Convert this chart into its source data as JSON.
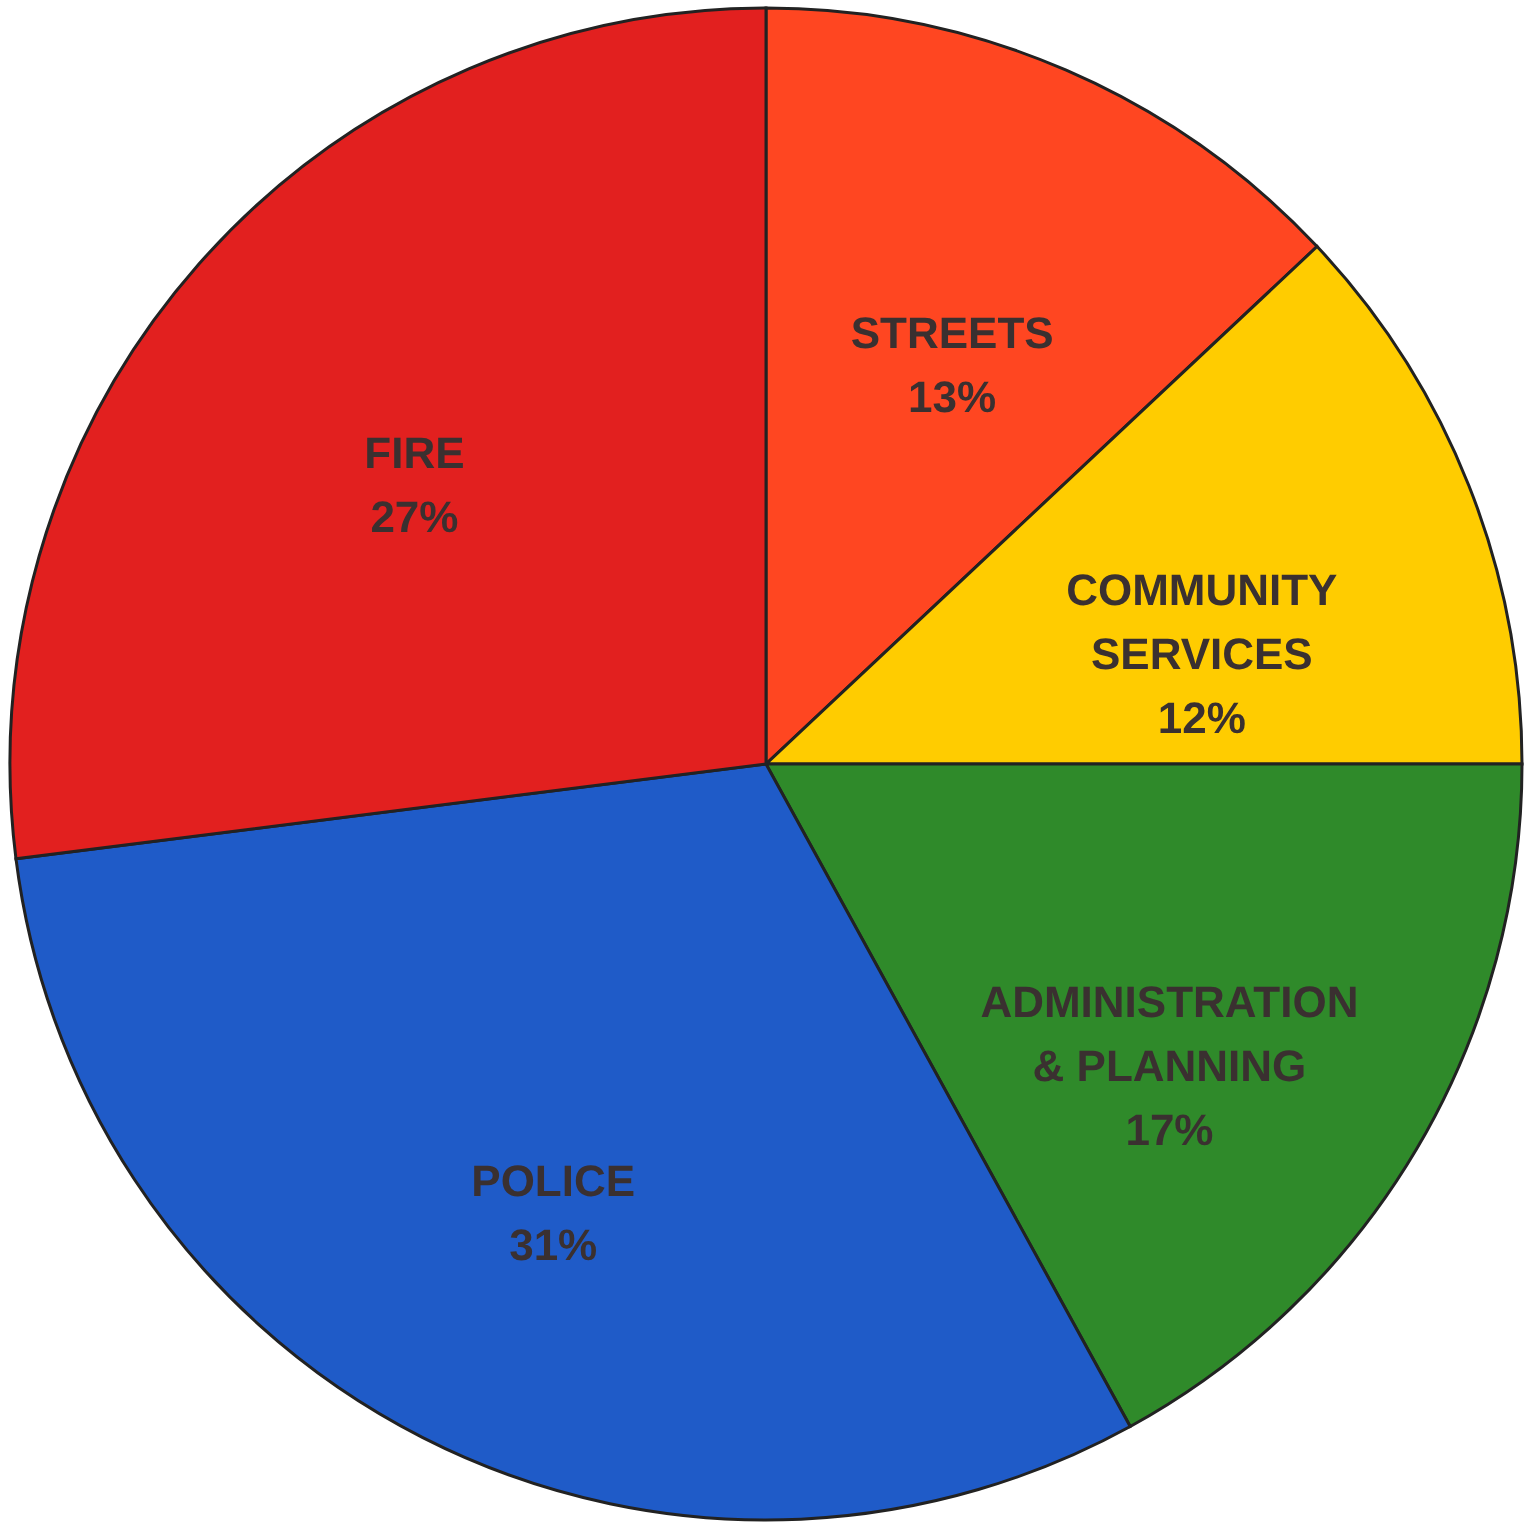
{
  "chart_data": {
    "type": "pie",
    "categories": [
      "STREETS",
      "COMMUNITY SERVICES",
      "ADMINISTRATION & PLANNING",
      "POLICE",
      "FIRE"
    ],
    "values": [
      13,
      12,
      17,
      31,
      27
    ],
    "value_labels": [
      "13%",
      "12%",
      "17%",
      "31%",
      "27%"
    ],
    "colors": [
      "#ff4621",
      "#ffcc00",
      "#2f8a2a",
      "#1f5bc8",
      "#e2201f"
    ]
  }
}
